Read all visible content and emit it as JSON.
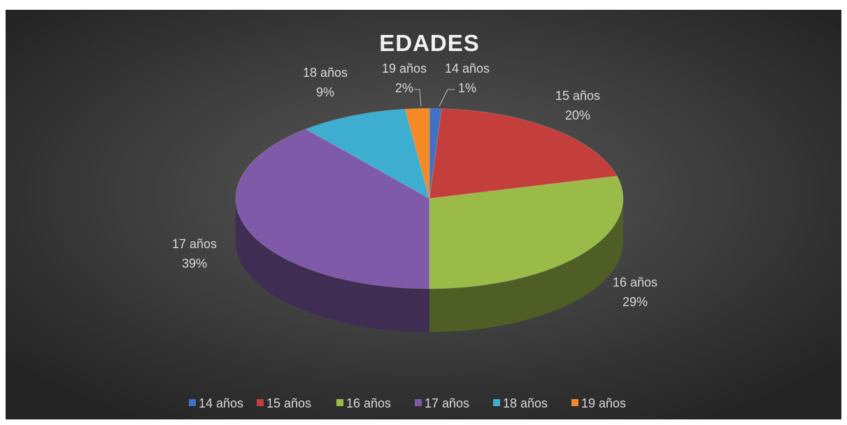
{
  "chart_data": {
    "type": "pie",
    "title": "EDADES",
    "categories": [
      "14 años",
      "15 años",
      "16 años",
      "17 años",
      "18 años",
      "19 años"
    ],
    "values": [
      1,
      20,
      29,
      39,
      9,
      2
    ],
    "value_labels": [
      "1%",
      "20%",
      "29%",
      "39%",
      "9%",
      "2%"
    ],
    "colors": [
      "#3f72c6",
      "#c43f3c",
      "#9bbb49",
      "#7f5aa8",
      "#3eaed0",
      "#f58a24"
    ],
    "legend": "bottom"
  }
}
